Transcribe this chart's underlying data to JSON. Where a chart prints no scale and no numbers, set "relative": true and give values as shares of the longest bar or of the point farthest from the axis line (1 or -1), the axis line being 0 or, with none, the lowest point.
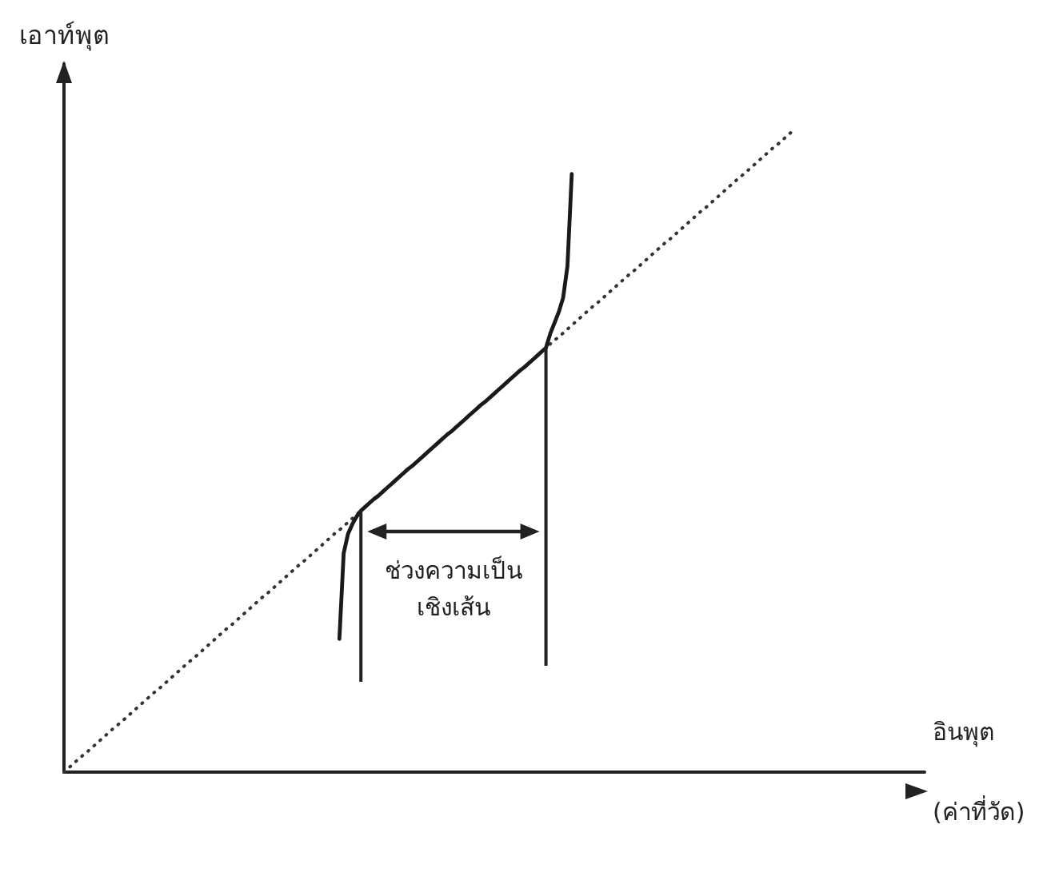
{
  "chart_data": {
    "type": "line",
    "relative": true,
    "xlabel": "อินพุต\n(ค่าที่วัด)",
    "ylabel": "เอาท์พุต",
    "marker": "none",
    "grid": false,
    "categories": [
      null,
      null,
      null,
      null,
      null,
      null,
      null,
      null,
      null,
      null,
      null,
      null,
      null,
      null,
      null,
      null,
      null,
      null,
      null,
      null,
      null,
      null,
      null,
      null,
      null,
      null,
      null,
      null,
      null,
      null,
      null,
      null,
      null,
      null,
      null,
      null,
      null,
      null,
      null,
      null,
      null,
      null,
      null,
      null,
      null,
      null,
      null,
      null,
      null,
      null,
      null,
      null,
      null,
      null,
      null,
      null,
      null,
      null,
      null,
      null,
      null,
      null,
      null,
      null,
      null,
      null,
      null,
      null,
      null,
      null,
      null,
      null,
      null,
      null,
      null,
      null,
      null,
      null,
      null,
      null,
      null,
      null,
      null,
      null,
      null,
      null,
      null,
      null,
      null,
      null,
      null,
      null,
      null,
      null,
      null,
      null,
      null,
      null,
      null,
      null,
      null,
      null,
      null,
      null,
      null,
      null,
      null,
      null,
      null,
      null,
      null,
      null,
      null,
      null,
      null,
      null,
      null,
      null,
      null,
      null,
      null,
      null,
      null,
      null,
      null,
      null,
      null,
      null,
      null,
      null,
      null,
      null,
      null,
      null,
      null,
      null,
      null,
      null,
      null,
      null,
      null,
      null,
      null,
      null,
      null,
      null,
      null,
      null,
      null,
      null,
      null,
      null,
      null,
      null,
      null,
      null,
      null,
      null,
      null,
      null,
      null,
      null,
      null,
      null,
      null,
      null,
      null,
      null,
      null,
      null,
      null,
      null,
      null,
      null,
      null,
      null,
      null,
      null,
      null,
      null,
      null,
      null,
      null,
      null,
      null,
      null,
      null,
      null,
      null,
      null,
      null,
      null,
      null,
      null,
      null,
      null,
      null,
      null,
      null,
      null,
      null
    ],
    "series": [
      {
        "color": "#333333",
        "line_style": "dotted",
        "values": [
          0,
          0.006,
          0.012,
          0.018,
          0.024,
          0.029,
          0.035,
          0.041,
          0.047,
          0.053,
          0.059,
          0.065,
          0.071,
          0.076,
          0.082,
          0.088,
          0.094,
          0.1,
          0.106,
          0.112,
          0.118,
          0.124,
          0.129,
          0.135,
          0.141,
          0.147,
          0.153,
          0.159,
          0.165,
          0.171,
          0.176,
          0.182,
          0.188,
          0.194,
          0.2,
          0.206,
          0.212,
          0.218,
          0.224,
          0.229,
          0.235,
          0.241,
          0.247,
          0.253,
          0.259,
          0.265,
          0.271,
          0.276,
          0.282,
          0.288,
          0.294,
          0.3,
          0.306,
          0.312,
          0.318,
          0.324,
          0.329,
          0.335,
          0.341,
          0.347,
          0.353,
          0.359,
          0.365,
          0.371,
          0.376,
          0.382,
          0.388,
          0.394,
          0.4,
          0.406,
          0.412,
          0.418,
          0.424,
          0.429,
          0.435,
          0.441,
          0.447,
          0.453,
          0.459,
          0.465,
          0.471,
          0.476,
          0.482,
          0.488,
          0.494,
          0.5,
          0.506,
          0.512,
          0.518,
          0.524,
          0.529,
          0.535,
          0.541,
          0.547,
          0.553,
          0.559,
          0.565,
          0.571,
          0.576,
          0.582,
          0.588,
          0.594,
          0.6,
          0.606,
          0.612,
          0.618,
          0.624,
          0.629,
          0.635,
          0.641,
          0.647,
          0.653,
          0.659,
          0.665,
          0.671,
          0.676,
          0.682,
          0.688,
          0.694,
          0.7,
          0.706,
          0.712,
          0.718,
          0.724,
          0.729,
          0.735,
          0.741,
          0.747,
          0.753,
          0.759,
          0.765,
          0.771,
          0.776,
          0.782,
          0.788,
          0.794,
          0.8,
          0.806,
          0.812,
          0.818,
          0.824,
          0.829,
          0.835,
          0.841,
          0.847,
          0.853,
          0.859,
          0.865,
          0.871,
          0.876,
          0.882,
          0.888,
          0.894,
          0.9,
          0.906,
          0.912,
          0.918,
          0.924,
          0.929,
          0.935,
          0.941,
          0.947,
          0.953,
          0.959,
          0.965,
          0.971,
          0.976,
          0.982,
          0.988,
          0.994,
          1,
          null,
          null,
          null,
          null,
          null,
          null,
          null,
          null,
          null,
          null,
          null,
          null,
          null,
          null,
          null,
          null,
          null,
          null,
          null,
          null,
          null,
          null,
          null,
          null,
          null,
          null,
          null,
          null,
          null,
          null
        ]
      },
      {
        "color": "#1a1a1a",
        "line_style": "solid",
        "values": [
          null,
          null,
          null,
          null,
          null,
          null,
          null,
          null,
          null,
          null,
          null,
          null,
          null,
          null,
          null,
          null,
          null,
          null,
          null,
          null,
          null,
          null,
          null,
          null,
          null,
          null,
          null,
          null,
          null,
          null,
          null,
          null,
          null,
          null,
          null,
          null,
          null,
          null,
          null,
          null,
          null,
          null,
          null,
          null,
          null,
          null,
          null,
          null,
          null,
          null,
          null,
          null,
          null,
          null,
          null,
          null,
          null,
          null,
          null,
          null,
          null,
          null,
          null,
          null,
          0.207,
          0.34,
          0.37,
          0.385,
          0.397,
          0.406,
          0.412,
          0.418,
          0.424,
          0.429,
          0.435,
          0.441,
          0.447,
          0.453,
          0.459,
          0.465,
          0.471,
          0.476,
          0.482,
          0.488,
          0.494,
          0.5,
          0.506,
          0.512,
          0.518,
          0.524,
          0.529,
          0.535,
          0.541,
          0.547,
          0.553,
          0.559,
          0.565,
          0.571,
          0.576,
          0.582,
          0.588,
          0.594,
          0.6,
          0.606,
          0.612,
          0.618,
          0.624,
          0.629,
          0.635,
          0.641,
          0.647,
          0.653,
          0.659,
          0.681,
          0.698,
          0.715,
          0.737,
          0.786,
          0.929,
          null,
          null,
          null,
          null,
          null,
          null,
          null,
          null,
          null,
          null,
          null,
          null,
          null,
          null,
          null,
          null,
          null,
          null,
          null,
          null,
          null,
          null,
          null,
          null,
          null,
          null,
          null,
          null,
          null,
          null,
          null,
          null,
          null,
          null,
          null,
          null,
          null,
          null,
          null,
          null,
          null,
          null,
          null,
          null,
          null,
          null,
          null,
          null,
          null,
          null,
          null,
          null,
          null,
          null,
          null,
          null,
          null,
          null,
          null,
          null,
          null,
          null,
          null,
          null,
          null,
          null,
          null,
          null,
          null,
          null,
          null,
          null,
          null,
          null,
          null,
          null,
          null,
          null,
          null,
          null,
          null,
          null
        ]
      }
    ],
    "annotations": [
      "ช่วงความเป็น\nเชิงเส้น"
    ]
  }
}
